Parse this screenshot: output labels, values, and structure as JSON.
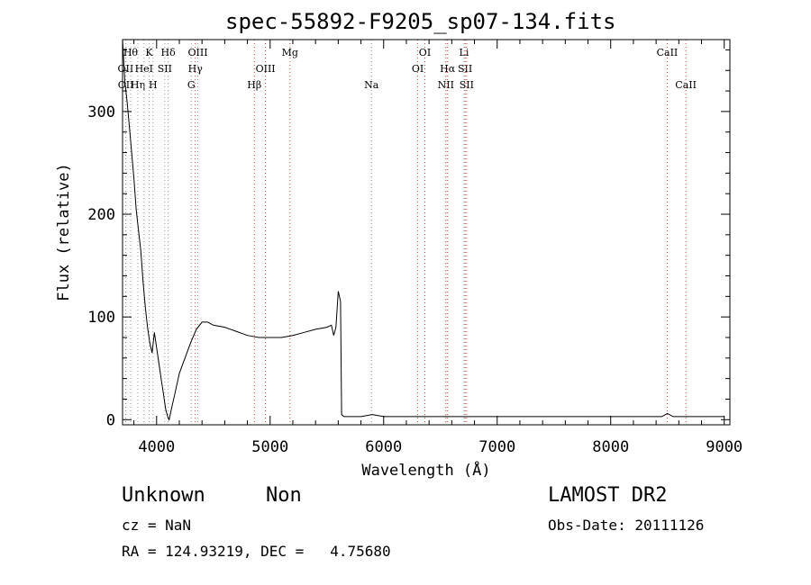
{
  "header": {
    "title": "spec-55892-F9205_sp07-134.fits"
  },
  "info": {
    "class": "Unknown",
    "subclass": "Non",
    "survey": "LAMOST DR2",
    "cz": "cz = NaN",
    "obs_date": "Obs-Date: 20111126",
    "radec": "RA = 124.93219, DEC =   4.75680"
  },
  "chart_data": {
    "type": "line",
    "title": "spec-55892-F9205_sp07-134.fits",
    "xlabel": "Wavelength (Å)",
    "ylabel": "Flux (relative)",
    "xlim": [
      3700,
      9050
    ],
    "ylim": [
      -5,
      370
    ],
    "xticks": [
      4000,
      5000,
      6000,
      7000,
      8000,
      9000
    ],
    "yticks": [
      0,
      100,
      200,
      300
    ],
    "grid": false,
    "series": [
      {
        "x": [
          3700,
          3720,
          3740,
          3760,
          3780,
          3800,
          3820,
          3840,
          3860,
          3880,
          3900,
          3920,
          3940,
          3960,
          3980,
          4000,
          4020,
          4040,
          4060,
          4080,
          4100,
          4110,
          4120,
          4140,
          4160,
          4180,
          4200,
          4250,
          4300,
          4350,
          4400,
          4450,
          4500,
          4600,
          4700,
          4800,
          4900,
          5000,
          5100,
          5200,
          5300,
          5400,
          5500,
          5540,
          5560,
          5580,
          5600,
          5620,
          5630,
          5640,
          5650,
          5700,
          5800,
          5900,
          6000,
          6200,
          6400,
          6500,
          6600,
          6700,
          6800,
          7000,
          7500,
          8000,
          8300,
          8450,
          8500,
          8550,
          8700,
          8900,
          9000
        ],
        "y": [
          370,
          330,
          310,
          285,
          260,
          235,
          205,
          185,
          165,
          135,
          110,
          90,
          75,
          65,
          85,
          70,
          55,
          40,
          25,
          10,
          2,
          0,
          5,
          15,
          25,
          35,
          45,
          60,
          75,
          88,
          95,
          95,
          92,
          90,
          86,
          82,
          80,
          80,
          80,
          82,
          85,
          88,
          90,
          92,
          82,
          90,
          125,
          115,
          5,
          4,
          3,
          3,
          3,
          5,
          3,
          3,
          3,
          3,
          3,
          3,
          3,
          3,
          3,
          3,
          3,
          3,
          6,
          3,
          3,
          3,
          3
        ]
      }
    ],
    "lines": [
      {
        "label": "OII",
        "x": 3727,
        "color": "#999999",
        "row": 1
      },
      {
        "label": "OII",
        "x": 3729,
        "color": "#999999",
        "row": 2
      },
      {
        "label": "Hθ",
        "x": 3771,
        "color": "#999999",
        "row": 0
      },
      {
        "label": "Hη",
        "x": 3835,
        "color": "#999999",
        "row": 2
      },
      {
        "label": "HeI",
        "x": 3889,
        "color": "#999999",
        "row": 1
      },
      {
        "label": "K",
        "x": 3934,
        "color": "#999999",
        "row": 0
      },
      {
        "label": "H",
        "x": 3968,
        "color": "#999999",
        "row": 2
      },
      {
        "label": "SII",
        "x": 4072,
        "color": "#999999",
        "row": 1
      },
      {
        "label": "Hδ",
        "x": 4102,
        "color": "#999999",
        "row": 0
      },
      {
        "label": "G",
        "x": 4305,
        "color": "#999999",
        "row": 2
      },
      {
        "label": "Hγ",
        "x": 4341,
        "color": "#cc4444",
        "row": 1
      },
      {
        "label": "OIII",
        "x": 4363,
        "color": "#999999",
        "row": 0
      },
      {
        "label": "Hβ",
        "x": 4861,
        "color": "#cc4444",
        "row": 2
      },
      {
        "label": "OIII",
        "x": 4959,
        "color": "#cc4444",
        "row": 1
      },
      {
        "label": "Mg",
        "x": 5175,
        "color": "#cc4444",
        "row": 0
      },
      {
        "label": "Na",
        "x": 5893,
        "color": "#999999",
        "row": 2
      },
      {
        "label": "OI",
        "x": 6300,
        "color": "#cc4444",
        "row": 1
      },
      {
        "label": "OI",
        "x": 6363,
        "color": "#cc4444",
        "row": 0
      },
      {
        "label": "NII",
        "x": 6548,
        "color": "#cc4444",
        "row": 2
      },
      {
        "label": "Hα",
        "x": 6563,
        "color": "#cc4444",
        "row": 1
      },
      {
        "label": "Li",
        "x": 6708,
        "color": "#999999",
        "row": 0
      },
      {
        "label": "SII",
        "x": 6717,
        "color": "#cc4444",
        "row": 1
      },
      {
        "label": "SII",
        "x": 6731,
        "color": "#cc4444",
        "row": 2
      },
      {
        "label": "CaII",
        "x": 8498,
        "color": "#cc4444",
        "row": 0
      },
      {
        "label": "CaII",
        "x": 8662,
        "color": "#cc4444",
        "row": 2
      }
    ]
  }
}
